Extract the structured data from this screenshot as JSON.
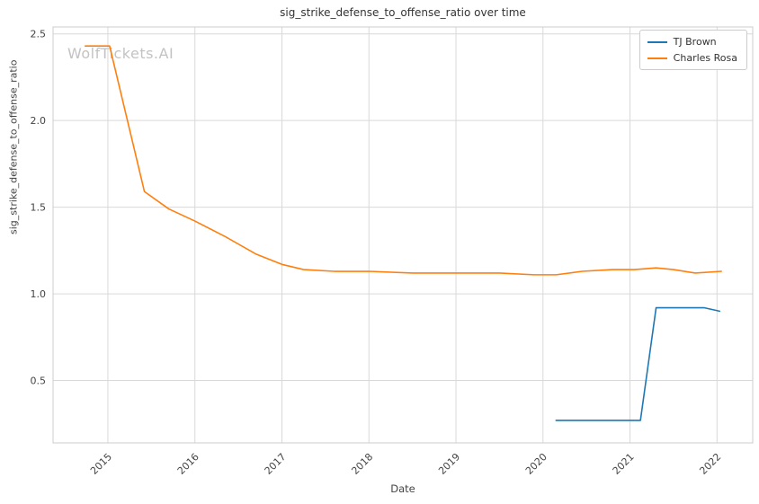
{
  "watermark": "WolfTickets.AI",
  "chart_data": {
    "type": "line",
    "title": "sig_strike_defense_to_offense_ratio over time",
    "xlabel": "Date",
    "ylabel": "sig_strike_defense_to_offense_ratio",
    "xlim": [
      2014.37,
      2022.41
    ],
    "ylim": [
      0.14,
      2.54
    ],
    "xticks": [
      2015,
      2016,
      2017,
      2018,
      2019,
      2020,
      2021,
      2022
    ],
    "yticks": [
      0.5,
      1.0,
      1.5,
      2.0,
      2.5
    ],
    "grid": true,
    "grid_color": "#d9d9d9",
    "border_color": "#cccccc",
    "legend_position": "upper right",
    "series": [
      {
        "name": "TJ Brown",
        "color": "#1f77b4",
        "x": [
          2020.15,
          2020.6,
          2021.05,
          2021.12,
          2021.3,
          2021.6,
          2021.85,
          2022.03
        ],
        "y": [
          0.27,
          0.27,
          0.27,
          0.27,
          0.92,
          0.92,
          0.92,
          0.9
        ]
      },
      {
        "name": "Charles Rosa",
        "color": "#ff7f0e",
        "x": [
          2014.74,
          2015.02,
          2015.42,
          2015.7,
          2016.0,
          2016.35,
          2016.7,
          2017.0,
          2017.25,
          2017.6,
          2018.0,
          2018.5,
          2019.0,
          2019.5,
          2019.9,
          2020.15,
          2020.45,
          2020.8,
          2021.05,
          2021.3,
          2021.5,
          2021.75,
          2022.05
        ],
        "y": [
          2.43,
          2.43,
          1.59,
          1.49,
          1.42,
          1.33,
          1.23,
          1.17,
          1.14,
          1.13,
          1.13,
          1.12,
          1.12,
          1.12,
          1.11,
          1.11,
          1.13,
          1.14,
          1.14,
          1.15,
          1.14,
          1.12,
          1.13
        ]
      }
    ]
  }
}
